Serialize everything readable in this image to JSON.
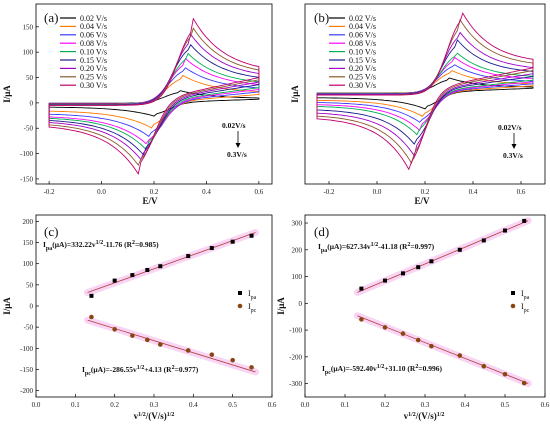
{
  "chart_data": [
    {
      "panel": "(a)",
      "type": "line",
      "subtype": "cyclic-voltammogram",
      "xlabel": "E/V",
      "ylabel": "I/μA",
      "xlim": [
        -0.25,
        0.65
      ],
      "ylim": [
        -160,
        195
      ],
      "xticks": [
        "-0.2",
        "0.0",
        "0.2",
        "0.4",
        "0.6"
      ],
      "yticks": [
        "-150",
        "-100",
        "-50",
        "0",
        "50",
        "100",
        "150"
      ],
      "arrow_note": {
        "top": "0.02V/s",
        "bottom": "0.3V/s"
      },
      "series": [
        {
          "name": "0.02 V/s",
          "color": "#000000",
          "ipa": 24,
          "ipc": -26
        },
        {
          "name": "0.04 V/s",
          "color": "#ff7a00",
          "ipa": 55,
          "ipc": -50
        },
        {
          "name": "0.06 V/s",
          "color": "#3a3aff",
          "ipa": 72,
          "ipc": -68
        },
        {
          "name": "0.08 V/s",
          "color": "#ff00ff",
          "ipa": 88,
          "ipc": -84
        },
        {
          "name": "0.10 V/s",
          "color": "#00b050",
          "ipa": 100,
          "ipc": -92
        },
        {
          "name": "0.15 V/s",
          "color": "#1a1a8c",
          "ipa": 120,
          "ipc": -104
        },
        {
          "name": "0.20 V/s",
          "color": "#a000c8",
          "ipa": 137,
          "ipc": -115
        },
        {
          "name": "0.25 V/s",
          "color": "#8b5a2b",
          "ipa": 152,
          "ipc": -128
        },
        {
          "name": "0.30 V/s",
          "color": "#c0006b",
          "ipa": 166,
          "ipc": -140
        }
      ]
    },
    {
      "panel": "(b)",
      "type": "line",
      "subtype": "cyclic-voltammogram",
      "xlabel": "E/V",
      "ylabel": "I/μA",
      "xlim": [
        -0.3,
        0.7
      ],
      "ylim": [
        -340,
        330
      ],
      "xticks": [
        "-0.2",
        "0.0",
        "0.2",
        "0.4",
        "0.6"
      ],
      "yticks": [],
      "arrow_note": {
        "top": "0.02V/s",
        "bottom": "0.3V/s"
      },
      "series": [
        {
          "name": "0.02 V/s",
          "color": "#000000",
          "ipa": 55,
          "ipc": -60
        },
        {
          "name": "0.04 V/s",
          "color": "#ff7a00",
          "ipa": 85,
          "ipc": -90
        },
        {
          "name": "0.06 V/s",
          "color": "#3a3aff",
          "ipa": 110,
          "ipc": -115
        },
        {
          "name": "0.08 V/s",
          "color": "#ff00ff",
          "ipa": 135,
          "ipc": -140
        },
        {
          "name": "0.10 V/s",
          "color": "#00b050",
          "ipa": 155,
          "ipc": -160
        },
        {
          "name": "0.15 V/s",
          "color": "#1a1a8c",
          "ipa": 200,
          "ipc": -200
        },
        {
          "name": "0.20 V/s",
          "color": "#a000c8",
          "ipa": 235,
          "ipc": -235
        },
        {
          "name": "0.25 V/s",
          "color": "#8b5a2b",
          "ipa": 275,
          "ipc": -268
        },
        {
          "name": "0.30 V/s",
          "color": "#c0006b",
          "ipa": 308,
          "ipc": -298
        }
      ]
    },
    {
      "panel": "(c)",
      "type": "scatter",
      "xlabel": "v1/2/(V/s)1/2",
      "ylabel": "I/μA",
      "xlim": [
        0.0,
        0.6
      ],
      "ylim": [
        -215,
        215
      ],
      "xticks": [
        "0.0",
        "0.1",
        "0.2",
        "0.3",
        "0.4",
        "0.5",
        "0.6"
      ],
      "yticks": [
        "-200",
        "-150",
        "-100",
        "-50",
        "0",
        "50",
        "100",
        "150",
        "200"
      ],
      "x": [
        0.141,
        0.2,
        0.245,
        0.283,
        0.316,
        0.387,
        0.447,
        0.5,
        0.548
      ],
      "series": [
        {
          "name": "Ipa",
          "marker": "square",
          "color": "#000000",
          "values": [
            24,
            60,
            73,
            85,
            94,
            118,
            137,
            152,
            166
          ],
          "fit": {
            "slope": 332.22,
            "intercept": -11.76,
            "label": "Ipa(μA)=332.22v1/2-11.76 (R2=0.985)"
          }
        },
        {
          "name": "Ipc",
          "marker": "circle",
          "color": "#8b4513",
          "values": [
            -26,
            -55,
            -70,
            -80,
            -91,
            -105,
            -115,
            -128,
            -145
          ],
          "fit": {
            "slope": -286.55,
            "intercept": 4.13,
            "label": "Ipc(μA)=-286.55v1/2+4.13 (R2=0.977)"
          }
        }
      ]
    },
    {
      "panel": "(d)",
      "type": "scatter",
      "xlabel": "v1/2/(V/s)1/2",
      "ylabel": "I/μA",
      "xlim": [
        0.0,
        0.6
      ],
      "ylim": [
        -350,
        330
      ],
      "xticks": [
        "0.0",
        "0.1",
        "0.2",
        "0.3",
        "0.4",
        "0.5",
        "0.6"
      ],
      "yticks": [
        "-300",
        "-200",
        "-100",
        "0",
        "100",
        "200",
        "300"
      ],
      "x": [
        0.141,
        0.2,
        0.245,
        0.283,
        0.316,
        0.387,
        0.447,
        0.5,
        0.548
      ],
      "series": [
        {
          "name": "Ipa",
          "marker": "square",
          "color": "#000000",
          "values": [
            55,
            85,
            112,
            135,
            157,
            200,
            235,
            272,
            308
          ],
          "fit": {
            "slope": 627.34,
            "intercept": -41.18,
            "label": "Ipa(μA)=627.34v1/2-41.18 (R2=0.997)"
          }
        },
        {
          "name": "Ipc",
          "marker": "circle",
          "color": "#8b4513",
          "values": [
            -60,
            -90,
            -113,
            -137,
            -160,
            -195,
            -235,
            -265,
            -298
          ],
          "fit": {
            "slope": -592.4,
            "intercept": 31.1,
            "label": "Ipc(μA)=-592.40v1/2+31.10 (R2=0.996)"
          }
        }
      ]
    }
  ]
}
